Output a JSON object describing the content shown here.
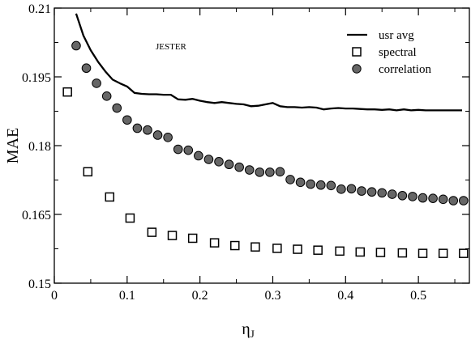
{
  "chart_data": {
    "type": "scatter",
    "title": "",
    "annotation": "JESTER",
    "xlabel": "η",
    "xlabel_sub": "J",
    "ylabel": "MAE",
    "xlim": [
      0,
      0.57
    ],
    "ylim": [
      0.15,
      0.21
    ],
    "xticks": [
      0,
      0.1,
      0.2,
      0.3,
      0.4,
      0.5
    ],
    "yticks": [
      0.15,
      0.165,
      0.18,
      0.195,
      0.21
    ],
    "xtick_labels": [
      "0",
      "0.1",
      "0.2",
      "0.3",
      "0.4",
      "0.5"
    ],
    "ytick_labels": [
      "0.15",
      "0.165",
      "0.18",
      "0.195",
      "0.21"
    ],
    "grid": false,
    "legend_position": "top-right",
    "series": [
      {
        "name": "usr avg",
        "style": "line",
        "color": "#000000",
        "x": [
          0.03,
          0.04,
          0.05,
          0.06,
          0.07,
          0.08,
          0.09,
          0.1,
          0.11,
          0.12,
          0.13,
          0.14,
          0.15,
          0.16,
          0.17,
          0.18,
          0.19,
          0.2,
          0.21,
          0.22,
          0.23,
          0.24,
          0.25,
          0.26,
          0.27,
          0.28,
          0.29,
          0.3,
          0.31,
          0.32,
          0.33,
          0.34,
          0.35,
          0.36,
          0.37,
          0.38,
          0.39,
          0.4,
          0.41,
          0.42,
          0.43,
          0.44,
          0.45,
          0.46,
          0.47,
          0.48,
          0.49,
          0.5,
          0.51,
          0.52,
          0.53,
          0.54,
          0.55,
          0.56
        ],
        "y": [
          0.2088,
          0.204,
          0.2008,
          0.1983,
          0.1962,
          0.1944,
          0.1936,
          0.1929,
          0.1915,
          0.1913,
          0.1912,
          0.1912,
          0.1911,
          0.1911,
          0.1901,
          0.19,
          0.1902,
          0.1898,
          0.1895,
          0.1893,
          0.1895,
          0.1893,
          0.1891,
          0.189,
          0.1886,
          0.1887,
          0.189,
          0.1893,
          0.1886,
          0.1884,
          0.1884,
          0.1883,
          0.1884,
          0.1883,
          0.1879,
          0.1881,
          0.1882,
          0.1881,
          0.1881,
          0.188,
          0.1879,
          0.1879,
          0.1878,
          0.1879,
          0.1877,
          0.1879,
          0.1877,
          0.1878,
          0.1877,
          0.1877,
          0.1877,
          0.1877,
          0.1877,
          0.1877
        ]
      },
      {
        "name": "spectral",
        "style": "open-square",
        "color": "#000000",
        "x": [
          0.018,
          0.046,
          0.076,
          0.104,
          0.134,
          0.162,
          0.19,
          0.22,
          0.248,
          0.276,
          0.306,
          0.334,
          0.362,
          0.392,
          0.42,
          0.448,
          0.478,
          0.506,
          0.534,
          0.562
        ],
        "y": [
          0.1917,
          0.1743,
          0.1688,
          0.1642,
          0.1611,
          0.1604,
          0.1598,
          0.1588,
          0.1582,
          0.1579,
          0.1576,
          0.1574,
          0.1572,
          0.157,
          0.1568,
          0.1567,
          0.1566,
          0.1565,
          0.1565,
          0.1565
        ]
      },
      {
        "name": "correlation",
        "style": "filled-circle",
        "color": "#666666",
        "x": [
          0.03,
          0.044,
          0.058,
          0.072,
          0.086,
          0.1,
          0.114,
          0.128,
          0.142,
          0.156,
          0.17,
          0.184,
          0.198,
          0.212,
          0.226,
          0.24,
          0.254,
          0.268,
          0.282,
          0.296,
          0.31,
          0.324,
          0.338,
          0.352,
          0.366,
          0.38,
          0.394,
          0.408,
          0.422,
          0.436,
          0.45,
          0.464,
          0.478,
          0.492,
          0.506,
          0.52,
          0.534,
          0.548,
          0.562
        ],
        "y": [
          0.2018,
          0.1969,
          0.1936,
          0.1908,
          0.1882,
          0.1856,
          0.1838,
          0.1834,
          0.1823,
          0.1818,
          0.1792,
          0.179,
          0.1778,
          0.177,
          0.1765,
          0.1759,
          0.1753,
          0.1747,
          0.1742,
          0.1742,
          0.1743,
          0.1726,
          0.172,
          0.1716,
          0.1714,
          0.1713,
          0.1705,
          0.1706,
          0.1701,
          0.1699,
          0.1697,
          0.1694,
          0.1691,
          0.1689,
          0.1686,
          0.1685,
          0.1683,
          0.168,
          0.168
        ]
      }
    ]
  }
}
